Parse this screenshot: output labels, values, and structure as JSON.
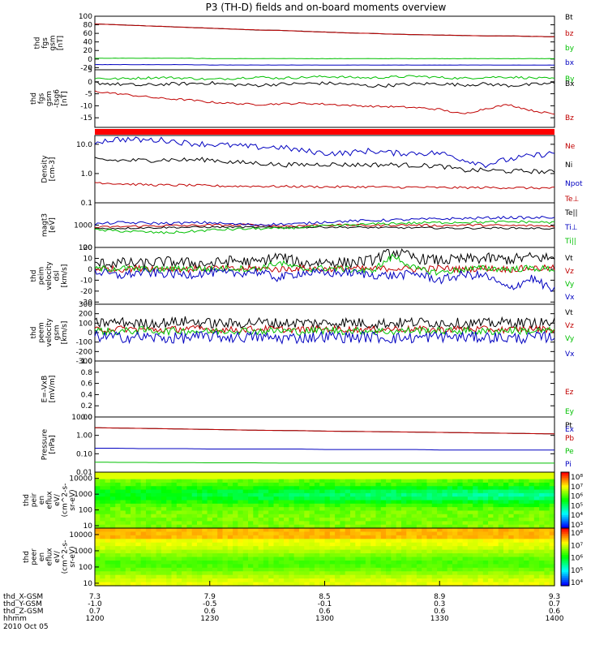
{
  "title": "P3 (TH-D) fields and on-board moments overview",
  "chart_data": [
    {
      "id": "fgs",
      "type": "line",
      "ylabel": [
        "thd",
        "fgs",
        "gsm",
        "[nT]"
      ],
      "yticks": [
        "100",
        "80",
        "60",
        "40",
        "20",
        "0",
        "-20"
      ],
      "ylim": [
        -25,
        100
      ],
      "series": [
        {
          "name": "Bt",
          "color": "#000000",
          "values": [
            82,
            80,
            78,
            76,
            74,
            72,
            70,
            68,
            67,
            65,
            63,
            61,
            60,
            58,
            57,
            56,
            55,
            54,
            54,
            53,
            52
          ]
        },
        {
          "name": "bz",
          "color": "#c00000",
          "values": [
            82,
            80,
            78,
            76,
            74,
            72,
            70,
            68,
            67,
            65,
            63,
            61,
            60,
            58,
            57,
            56,
            55,
            54,
            54,
            53,
            52
          ]
        },
        {
          "name": "by",
          "color": "#00c000",
          "values": [
            2,
            2,
            2,
            2,
            2,
            1,
            1,
            1,
            1,
            1,
            1,
            1,
            1,
            1,
            1,
            1,
            1,
            1,
            1,
            1,
            1
          ]
        },
        {
          "name": "bx",
          "color": "#0000c0",
          "values": [
            -13,
            -13,
            -13,
            -13,
            -13,
            -14,
            -14,
            -14,
            -14,
            -14,
            -14,
            -14,
            -14,
            -14,
            -14,
            -14,
            -14,
            -14,
            -14,
            -14,
            -14
          ]
        }
      ]
    },
    {
      "id": "fgs_hp",
      "type": "line",
      "ylabel": [
        "thd",
        "fgs",
        "gsm",
        "-tsg6",
        "[nT]"
      ],
      "yticks": [
        "5",
        "0",
        "-5",
        "-10",
        "-15"
      ],
      "ylim": [
        -19,
        5
      ],
      "series": [
        {
          "name": "By",
          "color": "#00c000",
          "values": [
            1.5,
            1.2,
            1.6,
            1.8,
            1.5,
            1.0,
            1.4,
            2.0,
            1.5,
            1.8,
            2.2,
            1.9,
            1.6,
            2.0,
            2.3,
            1.8,
            1.4,
            1.9,
            2.0,
            1.6,
            1.2
          ]
        },
        {
          "name": "Bx",
          "color": "#000000",
          "values": [
            -0.5,
            -1.0,
            -1.5,
            -1.0,
            -0.8,
            -0.5,
            -1.2,
            -1.5,
            -1.0,
            -0.8,
            -0.6,
            -1.0,
            -1.8,
            -1.4,
            -0.9,
            -0.8,
            -1.3,
            -0.9,
            -1.6,
            -1.2,
            -0.6
          ]
        },
        {
          "name": "Bz",
          "color": "#c00000",
          "values": [
            -4,
            -5,
            -6,
            -7,
            -7.5,
            -8.5,
            -9,
            -9.5,
            -9.2,
            -9.0,
            -9.3,
            -9.8,
            -10.2,
            -10.4,
            -10.8,
            -11.5,
            -13.5,
            -11.2,
            -9.5,
            -12.0,
            -13.5
          ]
        }
      ]
    },
    {
      "id": "density",
      "type": "line",
      "log": true,
      "ylabel": [
        "Density",
        "[cm-3]"
      ],
      "yticks": [
        "10.0",
        "1.0",
        "0.1"
      ],
      "ylim": [
        0.1,
        20
      ],
      "series": [
        {
          "name": "Ne",
          "color": "#c00000",
          "values": [
            0.5,
            0.45,
            0.42,
            0.4,
            0.4,
            0.38,
            0.37,
            0.37,
            0.36,
            0.36,
            0.35,
            0.35,
            0.35,
            0.34,
            0.34,
            0.33,
            0.33,
            0.33,
            0.33,
            0.32,
            0.32
          ]
        },
        {
          "name": "Ni",
          "color": "#000000",
          "values": [
            3.0,
            2.8,
            2.8,
            3.0,
            2.9,
            3.0,
            2.4,
            2.3,
            2.0,
            2.0,
            2.1,
            2.0,
            2.0,
            2.0,
            1.9,
            1.8,
            1.3,
            1.3,
            1.2,
            1.2,
            1.1
          ]
        },
        {
          "name": "Npot",
          "color": "#0000c0",
          "values": [
            12,
            15,
            14,
            14,
            11,
            10,
            9,
            8,
            8,
            6,
            5,
            5,
            6,
            5,
            5,
            5,
            3,
            2,
            3,
            4,
            5
          ]
        }
      ]
    },
    {
      "id": "temperature",
      "type": "line",
      "log": true,
      "ylabel": [
        "magt3",
        "[eV]"
      ],
      "yticks": [
        "1000",
        "100"
      ],
      "ylim": [
        100,
        10000
      ],
      "series": [
        {
          "name": "Te⊥",
          "color": "#c00000",
          "values": [
            800,
            850,
            900,
            950,
            950,
            1000,
            1000,
            1050,
            900,
            950,
            1000,
            1000,
            950,
            1000,
            1000,
            950,
            1000,
            1000,
            950,
            950,
            900
          ]
        },
        {
          "name": "Te||",
          "color": "#000000",
          "values": [
            700,
            720,
            750,
            780,
            800,
            820,
            820,
            800,
            780,
            800,
            820,
            800,
            780,
            760,
            760,
            740,
            720,
            740,
            740,
            720,
            700
          ]
        },
        {
          "name": "Ti⊥",
          "color": "#0000c0",
          "values": [
            1100,
            1300,
            1250,
            1200,
            1250,
            1300,
            1100,
            1050,
            1100,
            1150,
            1400,
            1500,
            1600,
            1700,
            1800,
            1900,
            2000,
            2100,
            2200,
            2100,
            2300
          ]
        },
        {
          "name": "Ti||",
          "color": "#00c000",
          "values": [
            600,
            550,
            500,
            450,
            500,
            600,
            650,
            700,
            700,
            800,
            900,
            1000,
            1100,
            1200,
            1250,
            1300,
            1350,
            1350,
            1400,
            1400,
            1300
          ]
        }
      ]
    },
    {
      "id": "velocity_dsl",
      "type": "line",
      "ylabel": [
        "thd",
        "peim",
        "velocity",
        "dsl",
        "[km/s]"
      ],
      "yticks": [
        "20",
        "10",
        "0",
        "-10",
        "-20",
        "-30"
      ],
      "ylim": [
        -32,
        20
      ],
      "series": [
        {
          "name": "Vt",
          "color": "#000000",
          "values": [
            5,
            6,
            5,
            7,
            6,
            5,
            8,
            6,
            12,
            5,
            7,
            6,
            8,
            16,
            10,
            8,
            9,
            10,
            9,
            11,
            10
          ]
        },
        {
          "name": "Vz",
          "color": "#c00000",
          "values": [
            1,
            0,
            1,
            1,
            0,
            1,
            0,
            1,
            0,
            1,
            0,
            1,
            0,
            1,
            0,
            1,
            0,
            1,
            0,
            1,
            1
          ]
        },
        {
          "name": "Vy",
          "color": "#00c000",
          "values": [
            0,
            1,
            0,
            0,
            1,
            0,
            1,
            0,
            6,
            0,
            1,
            0,
            -2,
            12,
            0,
            -3,
            0,
            1,
            0,
            1,
            0
          ]
        },
        {
          "name": "Vx",
          "color": "#0000c0",
          "values": [
            -2,
            -6,
            -3,
            -4,
            -5,
            -3,
            -4,
            -2,
            -8,
            -3,
            -4,
            -3,
            -5,
            -6,
            -4,
            -10,
            -5,
            -6,
            -18,
            -8,
            -20
          ]
        }
      ]
    },
    {
      "id": "velocity_gsm",
      "type": "line",
      "ylabel": [
        "thd",
        "peem",
        "velocity",
        "gsm",
        "[km/s]"
      ],
      "yticks": [
        "300",
        "200",
        "100",
        "0",
        "-100",
        "-200",
        "-300"
      ],
      "ylim": [
        -300,
        300
      ],
      "series": [
        {
          "name": "Vt",
          "color": "#000000",
          "values": [
            100,
            110,
            95,
            105,
            120,
            100,
            95,
            110,
            100,
            105,
            100,
            110,
            95,
            100,
            110,
            105,
            100,
            95,
            110,
            100,
            105
          ]
        },
        {
          "name": "Vz",
          "color": "#c00000",
          "values": [
            30,
            40,
            35,
            30,
            45,
            35,
            30,
            40,
            35,
            30,
            40,
            35,
            30,
            40,
            35,
            30,
            40,
            35,
            30,
            40,
            35
          ]
        },
        {
          "name": "Vy",
          "color": "#00c000",
          "values": [
            20,
            10,
            25,
            15,
            20,
            10,
            25,
            15,
            20,
            10,
            25,
            15,
            20,
            10,
            25,
            15,
            20,
            10,
            25,
            15,
            20
          ]
        },
        {
          "name": "Vx",
          "color": "#0000c0",
          "values": [
            -40,
            -50,
            -45,
            -60,
            -55,
            -40,
            -50,
            -45,
            -60,
            -55,
            -40,
            -50,
            -45,
            -60,
            -55,
            -40,
            -50,
            -45,
            -60,
            -55,
            -40
          ]
        }
      ]
    },
    {
      "id": "efield",
      "type": "line",
      "ylabel": [
        "E=-VxB",
        "[mV/m]"
      ],
      "yticks": [
        "1.0",
        "0.8",
        "0.6",
        "0.4",
        "0.2",
        "0.0"
      ],
      "ylim": [
        0,
        1
      ],
      "series": [
        {
          "name": "Ez",
          "color": "#c00000",
          "values": []
        },
        {
          "name": "Ey",
          "color": "#00c000",
          "values": []
        },
        {
          "name": "Ex",
          "color": "#0000c0",
          "values": []
        }
      ]
    },
    {
      "id": "pressure",
      "type": "line",
      "log": true,
      "ylabel": [
        "Pressure",
        "[nPa]"
      ],
      "yticks": [
        "10.00",
        "1.00",
        "0.10",
        "0.01"
      ],
      "ylim": [
        0.01,
        10
      ],
      "series": [
        {
          "name": "Pt",
          "color": "#000000",
          "values": [
            2.6,
            2.5,
            2.4,
            2.3,
            2.2,
            2.1,
            2.0,
            1.9,
            1.85,
            1.8,
            1.7,
            1.65,
            1.6,
            1.55,
            1.5,
            1.45,
            1.4,
            1.35,
            1.3,
            1.25,
            1.2
          ]
        },
        {
          "name": "Pb",
          "color": "#c00000",
          "values": [
            2.6,
            2.5,
            2.4,
            2.3,
            2.2,
            2.1,
            2.0,
            1.9,
            1.85,
            1.8,
            1.7,
            1.65,
            1.6,
            1.55,
            1.5,
            1.45,
            1.4,
            1.35,
            1.3,
            1.25,
            1.2
          ]
        },
        {
          "name": "Pe",
          "color": "#00c000",
          "values": [
            0.035,
            0.034,
            0.034,
            0.033,
            0.033,
            0.032,
            0.032,
            0.032,
            0.031,
            0.031,
            0.031,
            0.031,
            0.031,
            0.031,
            0.031,
            0.031,
            0.031,
            0.031,
            0.031,
            0.031,
            0.031
          ]
        },
        {
          "name": "Pi",
          "color": "#0000c0",
          "values": [
            0.2,
            0.2,
            0.19,
            0.19,
            0.19,
            0.18,
            0.18,
            0.18,
            0.18,
            0.18,
            0.17,
            0.17,
            0.17,
            0.17,
            0.17,
            0.16,
            0.16,
            0.16,
            0.16,
            0.16,
            0.16
          ]
        }
      ]
    },
    {
      "id": "peir_spec",
      "type": "heatmap",
      "ylabel": [
        "thd",
        "peir",
        "en",
        "eflux",
        "eV/",
        "(cm^2-s-",
        "sr-eV)"
      ],
      "yticks": [
        "10000",
        "1000",
        "100",
        "10"
      ],
      "ylim": [
        7,
        25000
      ],
      "colorbar": {
        "min_exp": 3,
        "max_exp": 8,
        "labels": [
          "10⁸",
          "10⁷",
          "10⁶",
          "10⁵",
          "10⁴",
          "10³"
        ]
      }
    },
    {
      "id": "peer_spec",
      "type": "heatmap",
      "ylabel": [
        "thd",
        "peer",
        "en",
        "eflux",
        "eV/",
        "(cm^2-s-",
        "sr-eV)"
      ],
      "yticks": [
        "10000",
        "1000",
        "100",
        "10"
      ],
      "ylim": [
        7,
        25000
      ],
      "colorbar": {
        "min_exp": 4,
        "max_exp": 8,
        "labels": [
          "10⁸",
          "10⁷",
          "10⁶",
          "10⁵",
          "10⁴"
        ]
      }
    }
  ],
  "xaxis": {
    "ticks": [
      "1200",
      "1230",
      "1300",
      "1330",
      "1400"
    ],
    "rows": [
      {
        "label": "thd_X-GSM",
        "values": [
          "7.3",
          "7.9",
          "8.5",
          "8.9",
          "9.3"
        ]
      },
      {
        "label": "thd_Y-GSM",
        "values": [
          "-1.0",
          "-0.5",
          "-0.1",
          "0.3",
          "0.7"
        ]
      },
      {
        "label": "thd_Z-GSM",
        "values": [
          "0.7",
          "0.6",
          "0.6",
          "0.6",
          "0.6"
        ]
      },
      {
        "label": "hhmm",
        "values": [
          "1200",
          "1230",
          "1300",
          "1330",
          "1400"
        ]
      }
    ],
    "date": "2010 Oct 05"
  }
}
